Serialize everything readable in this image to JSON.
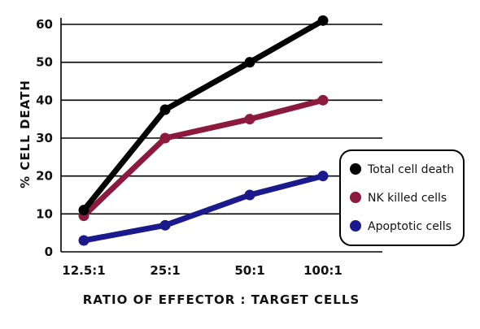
{
  "chart_data": {
    "type": "line",
    "title": "",
    "xlabel": "RATIO OF EFFECTOR : TARGET CELLS",
    "ylabel": "% CELL DEATH",
    "categories": [
      "12.5:1",
      "25:1",
      "50:1",
      "100:1"
    ],
    "ylim": [
      0,
      60
    ],
    "yticks": [
      0,
      10,
      20,
      30,
      40,
      50,
      60
    ],
    "grid": "horizontal",
    "legend_position": "right",
    "series": [
      {
        "name": "Total cell death",
        "color": "#000000",
        "values": [
          11,
          37.5,
          50,
          61
        ]
      },
      {
        "name": "NK killed cells",
        "color": "#8b1a3e",
        "values": [
          9.5,
          30,
          35,
          40
        ]
      },
      {
        "name": "Apoptotic cells",
        "color": "#1a1a8c",
        "values": [
          3,
          7,
          15,
          20
        ]
      }
    ]
  }
}
